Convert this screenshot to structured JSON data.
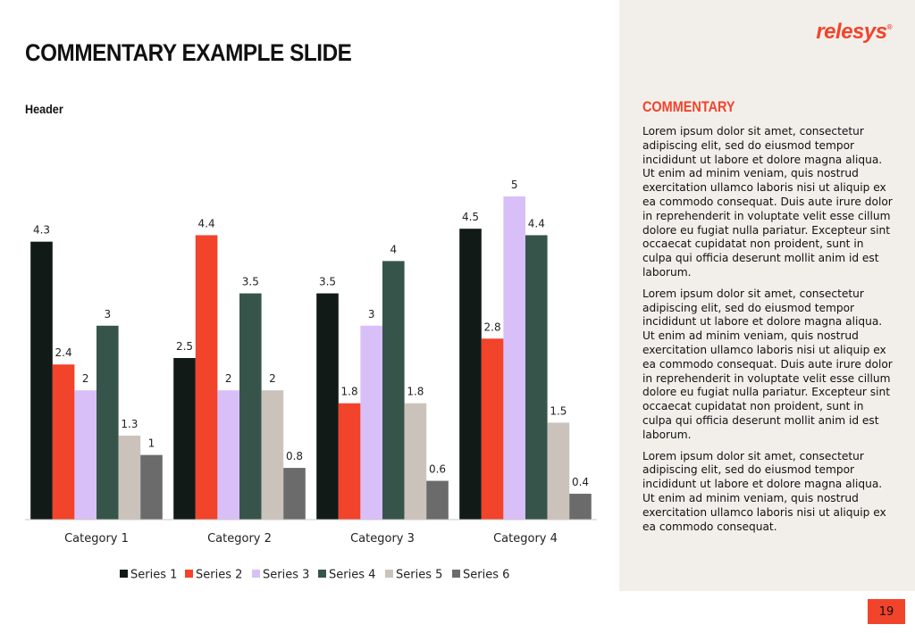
{
  "slide": {
    "title": "COMMENTARY EXAMPLE SLIDE",
    "chart_header": "Header",
    "page_number": "19"
  },
  "brand": {
    "logo_text": "relesys",
    "logo_mark": "®",
    "accent": "#f2432b"
  },
  "commentary": {
    "title": "COMMENTARY",
    "paragraphs": [
      "Lorem ipsum dolor sit amet, consectetur adipiscing elit, sed do eiusmod tempor incididunt ut labore et dolore magna aliqua. Ut enim ad minim veniam, quis nostrud exercitation ullamco laboris nisi ut aliquip ex ea commodo consequat. Duis aute irure dolor in reprehenderit in voluptate velit esse cillum dolore eu fugiat nulla pariatur. Excepteur sint occaecat cupidatat non proident, sunt in culpa qui officia deserunt mollit anim id est laborum.",
      "Lorem ipsum dolor sit amet, consectetur adipiscing elit, sed do eiusmod tempor incididunt ut labore et dolore magna aliqua. Ut enim ad minim veniam, quis nostrud exercitation ullamco laboris nisi ut aliquip ex ea commodo consequat. Duis aute irure dolor in reprehenderit in voluptate velit esse cillum dolore eu fugiat nulla pariatur. Excepteur sint occaecat cupidatat non proident, sunt in culpa qui officia deserunt mollit anim id est laborum.",
      "Lorem ipsum dolor sit amet, consectetur adipiscing elit, sed do eiusmod tempor incididunt ut labore et dolore magna aliqua. Ut enim ad minim veniam, quis nostrud exercitation ullamco laboris nisi ut aliquip ex ea commodo consequat."
    ]
  },
  "chart_data": {
    "type": "bar",
    "title": "",
    "xlabel": "",
    "ylabel": "",
    "ylim": [
      0,
      5
    ],
    "grid": false,
    "legend": "bottom",
    "categories": [
      "Category 1",
      "Category 2",
      "Category 3",
      "Category 4"
    ],
    "series": [
      {
        "name": "Series 1",
        "color": "#121a18",
        "values": [
          4.3,
          2.5,
          3.5,
          4.5
        ]
      },
      {
        "name": "Series 2",
        "color": "#f2432b",
        "values": [
          2.4,
          4.4,
          1.8,
          2.8
        ]
      },
      {
        "name": "Series 3",
        "color": "#d9bff7",
        "values": [
          2,
          2,
          3,
          5
        ]
      },
      {
        "name": "Series 4",
        "color": "#37544b",
        "values": [
          3,
          3.5,
          4,
          4.4
        ]
      },
      {
        "name": "Series 5",
        "color": "#cbc3bb",
        "values": [
          1.3,
          2,
          1.8,
          1.5
        ]
      },
      {
        "name": "Series 6",
        "color": "#6b6b6b",
        "values": [
          1,
          0.8,
          0.6,
          0.4
        ]
      }
    ]
  }
}
